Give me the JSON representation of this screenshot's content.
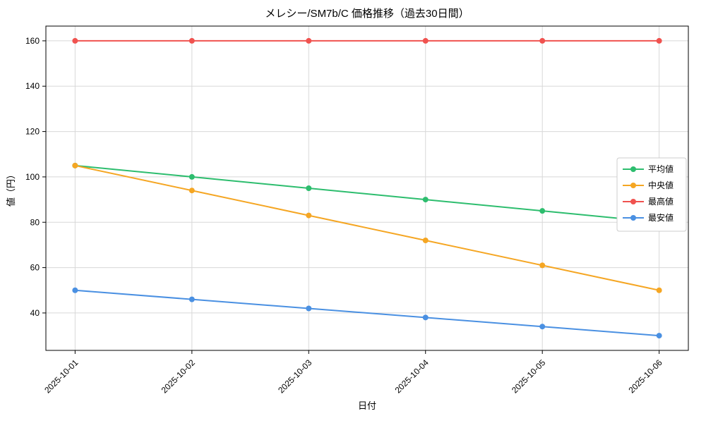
{
  "chart_data": {
    "type": "line",
    "title": "メレシー/SM7b/C 価格推移（過去30日間）",
    "xlabel": "日付",
    "ylabel": "値（円）",
    "categories": [
      "2025-10-01",
      "2025-10-02",
      "2025-10-03",
      "2025-10-04",
      "2025-10-05",
      "2025-10-06"
    ],
    "series": [
      {
        "name": "平均値",
        "color": "#2dbd6e",
        "values": [
          105,
          100,
          95,
          90,
          85,
          80
        ]
      },
      {
        "name": "中央値",
        "color": "#f5a623",
        "values": [
          105,
          94,
          83,
          72,
          61,
          50
        ]
      },
      {
        "name": "最高値",
        "color": "#f0524f",
        "values": [
          160,
          160,
          160,
          160,
          160,
          160
        ]
      },
      {
        "name": "最安値",
        "color": "#4a90e2",
        "values": [
          50,
          46,
          42,
          38,
          34,
          30
        ]
      }
    ],
    "y_ticks": [
      40,
      60,
      80,
      100,
      120,
      140,
      160
    ],
    "ylim": [
      23.5,
      166.5
    ],
    "grid": true,
    "legend_position": "center right",
    "grid_color": "#d8d8d8",
    "spine_color": "#000000"
  }
}
